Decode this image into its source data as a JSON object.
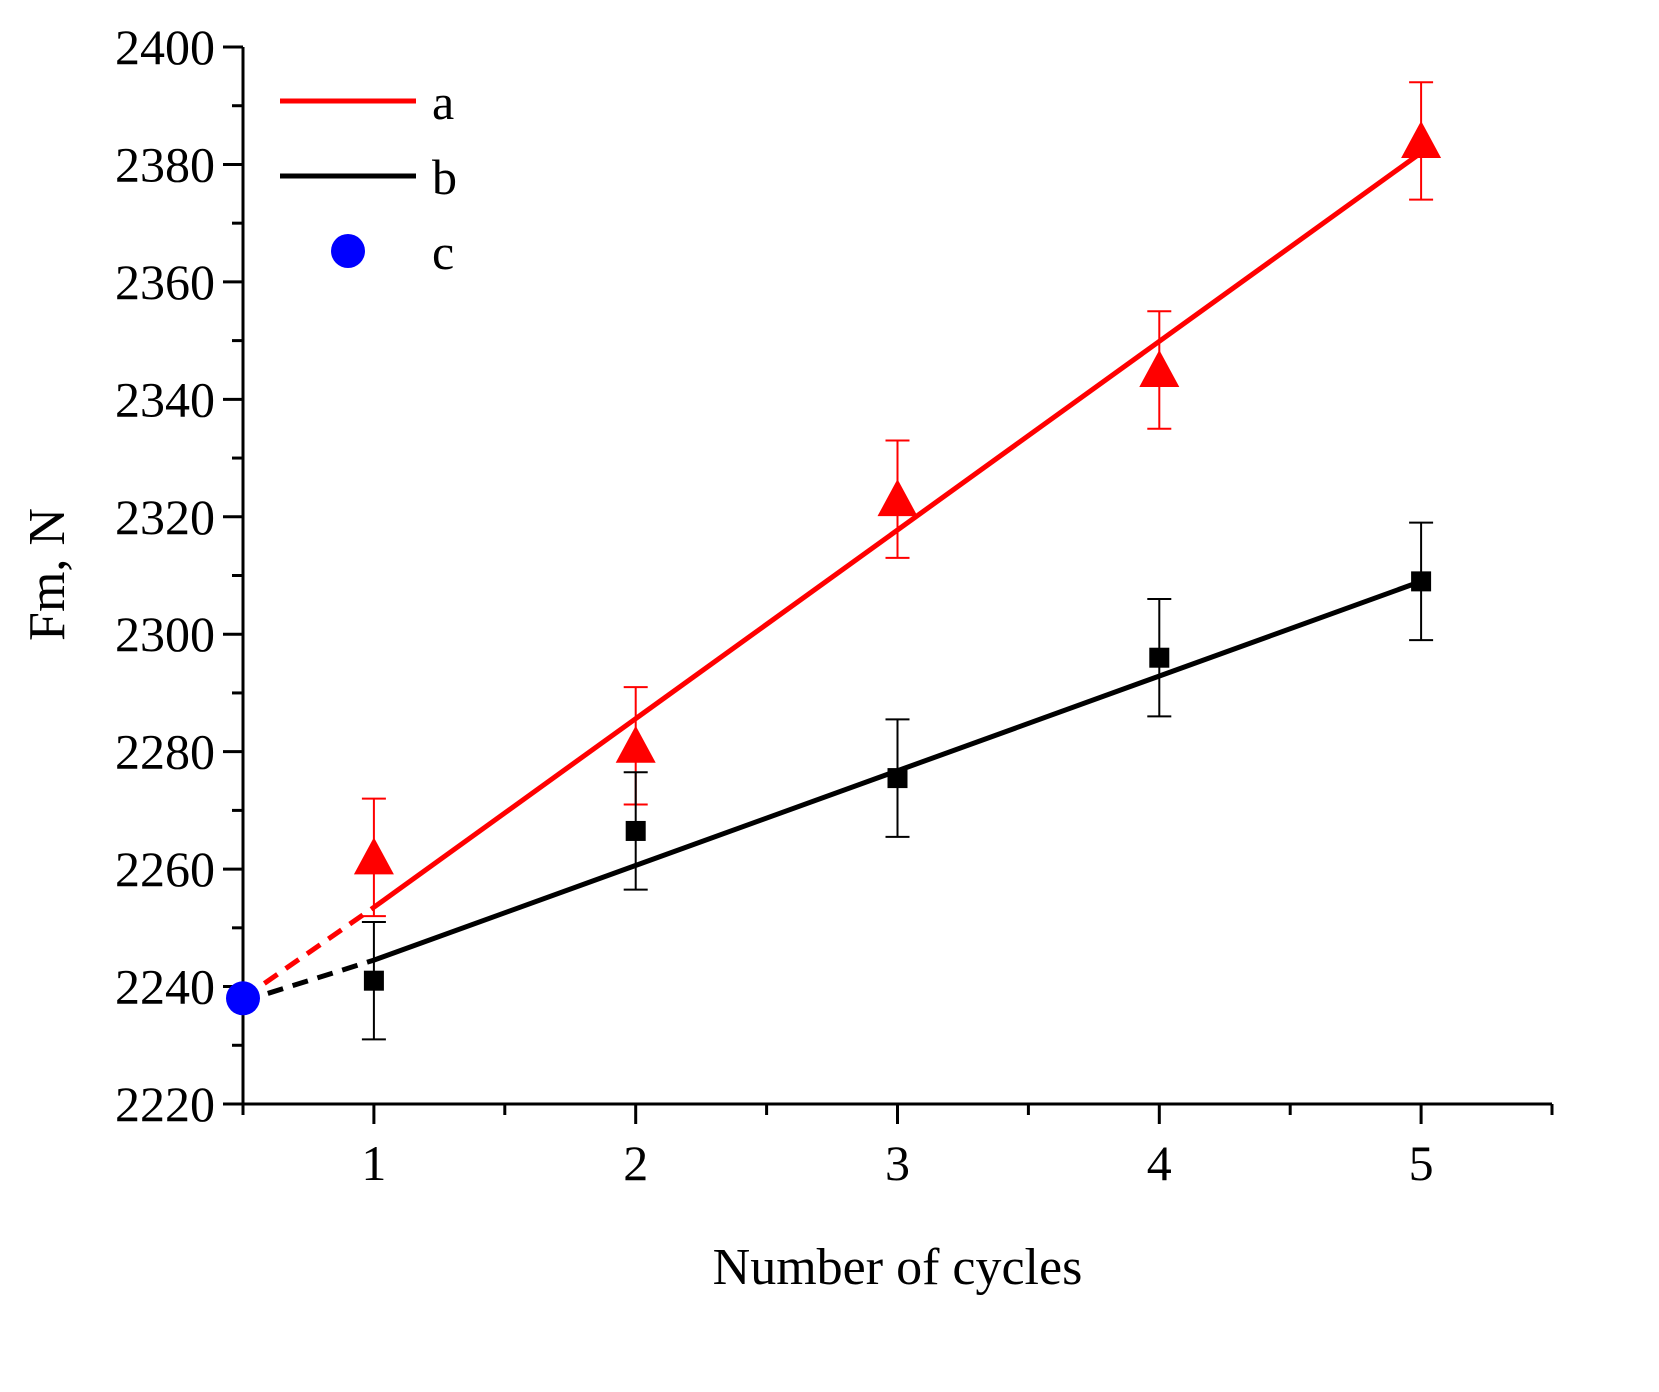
{
  "chart_data": {
    "type": "line",
    "xlabel": "Number of cycles",
    "ylabel": "Fm, N",
    "xlim": [
      0.5,
      5.5
    ],
    "ylim": [
      2220,
      2400
    ],
    "x_ticks": [
      1,
      2,
      3,
      4,
      5
    ],
    "y_ticks": [
      2220,
      2240,
      2260,
      2280,
      2300,
      2320,
      2340,
      2360,
      2380,
      2400
    ],
    "legend_position": "top-left",
    "series": [
      {
        "name": "a",
        "color": "#ff0000",
        "marker": "triangle",
        "x": [
          1,
          2,
          3,
          4,
          5
        ],
        "values": [
          2262,
          2281,
          2323,
          2345,
          2384
        ],
        "error": [
          10,
          10,
          10,
          10,
          10
        ],
        "fit": {
          "x": [
            1,
            5
          ],
          "y": [
            2253.5,
            2382
          ],
          "extrapolated_to_x": 0.5,
          "extrapolated_y": 2238
        }
      },
      {
        "name": "b",
        "color": "#000000",
        "marker": "square",
        "x": [
          1,
          2,
          3,
          4,
          5
        ],
        "values": [
          2241,
          2266.5,
          2275.5,
          2296,
          2309
        ],
        "error": [
          10,
          10,
          10,
          10,
          10
        ],
        "fit": {
          "x": [
            1,
            5
          ],
          "y": [
            2244.5,
            2309
          ],
          "extrapolated_to_x": 0.5,
          "extrapolated_y": 2237.5
        }
      },
      {
        "name": "c",
        "color": "#0000ff",
        "marker": "circle",
        "x": [
          0.5
        ],
        "values": [
          2238
        ]
      }
    ]
  }
}
